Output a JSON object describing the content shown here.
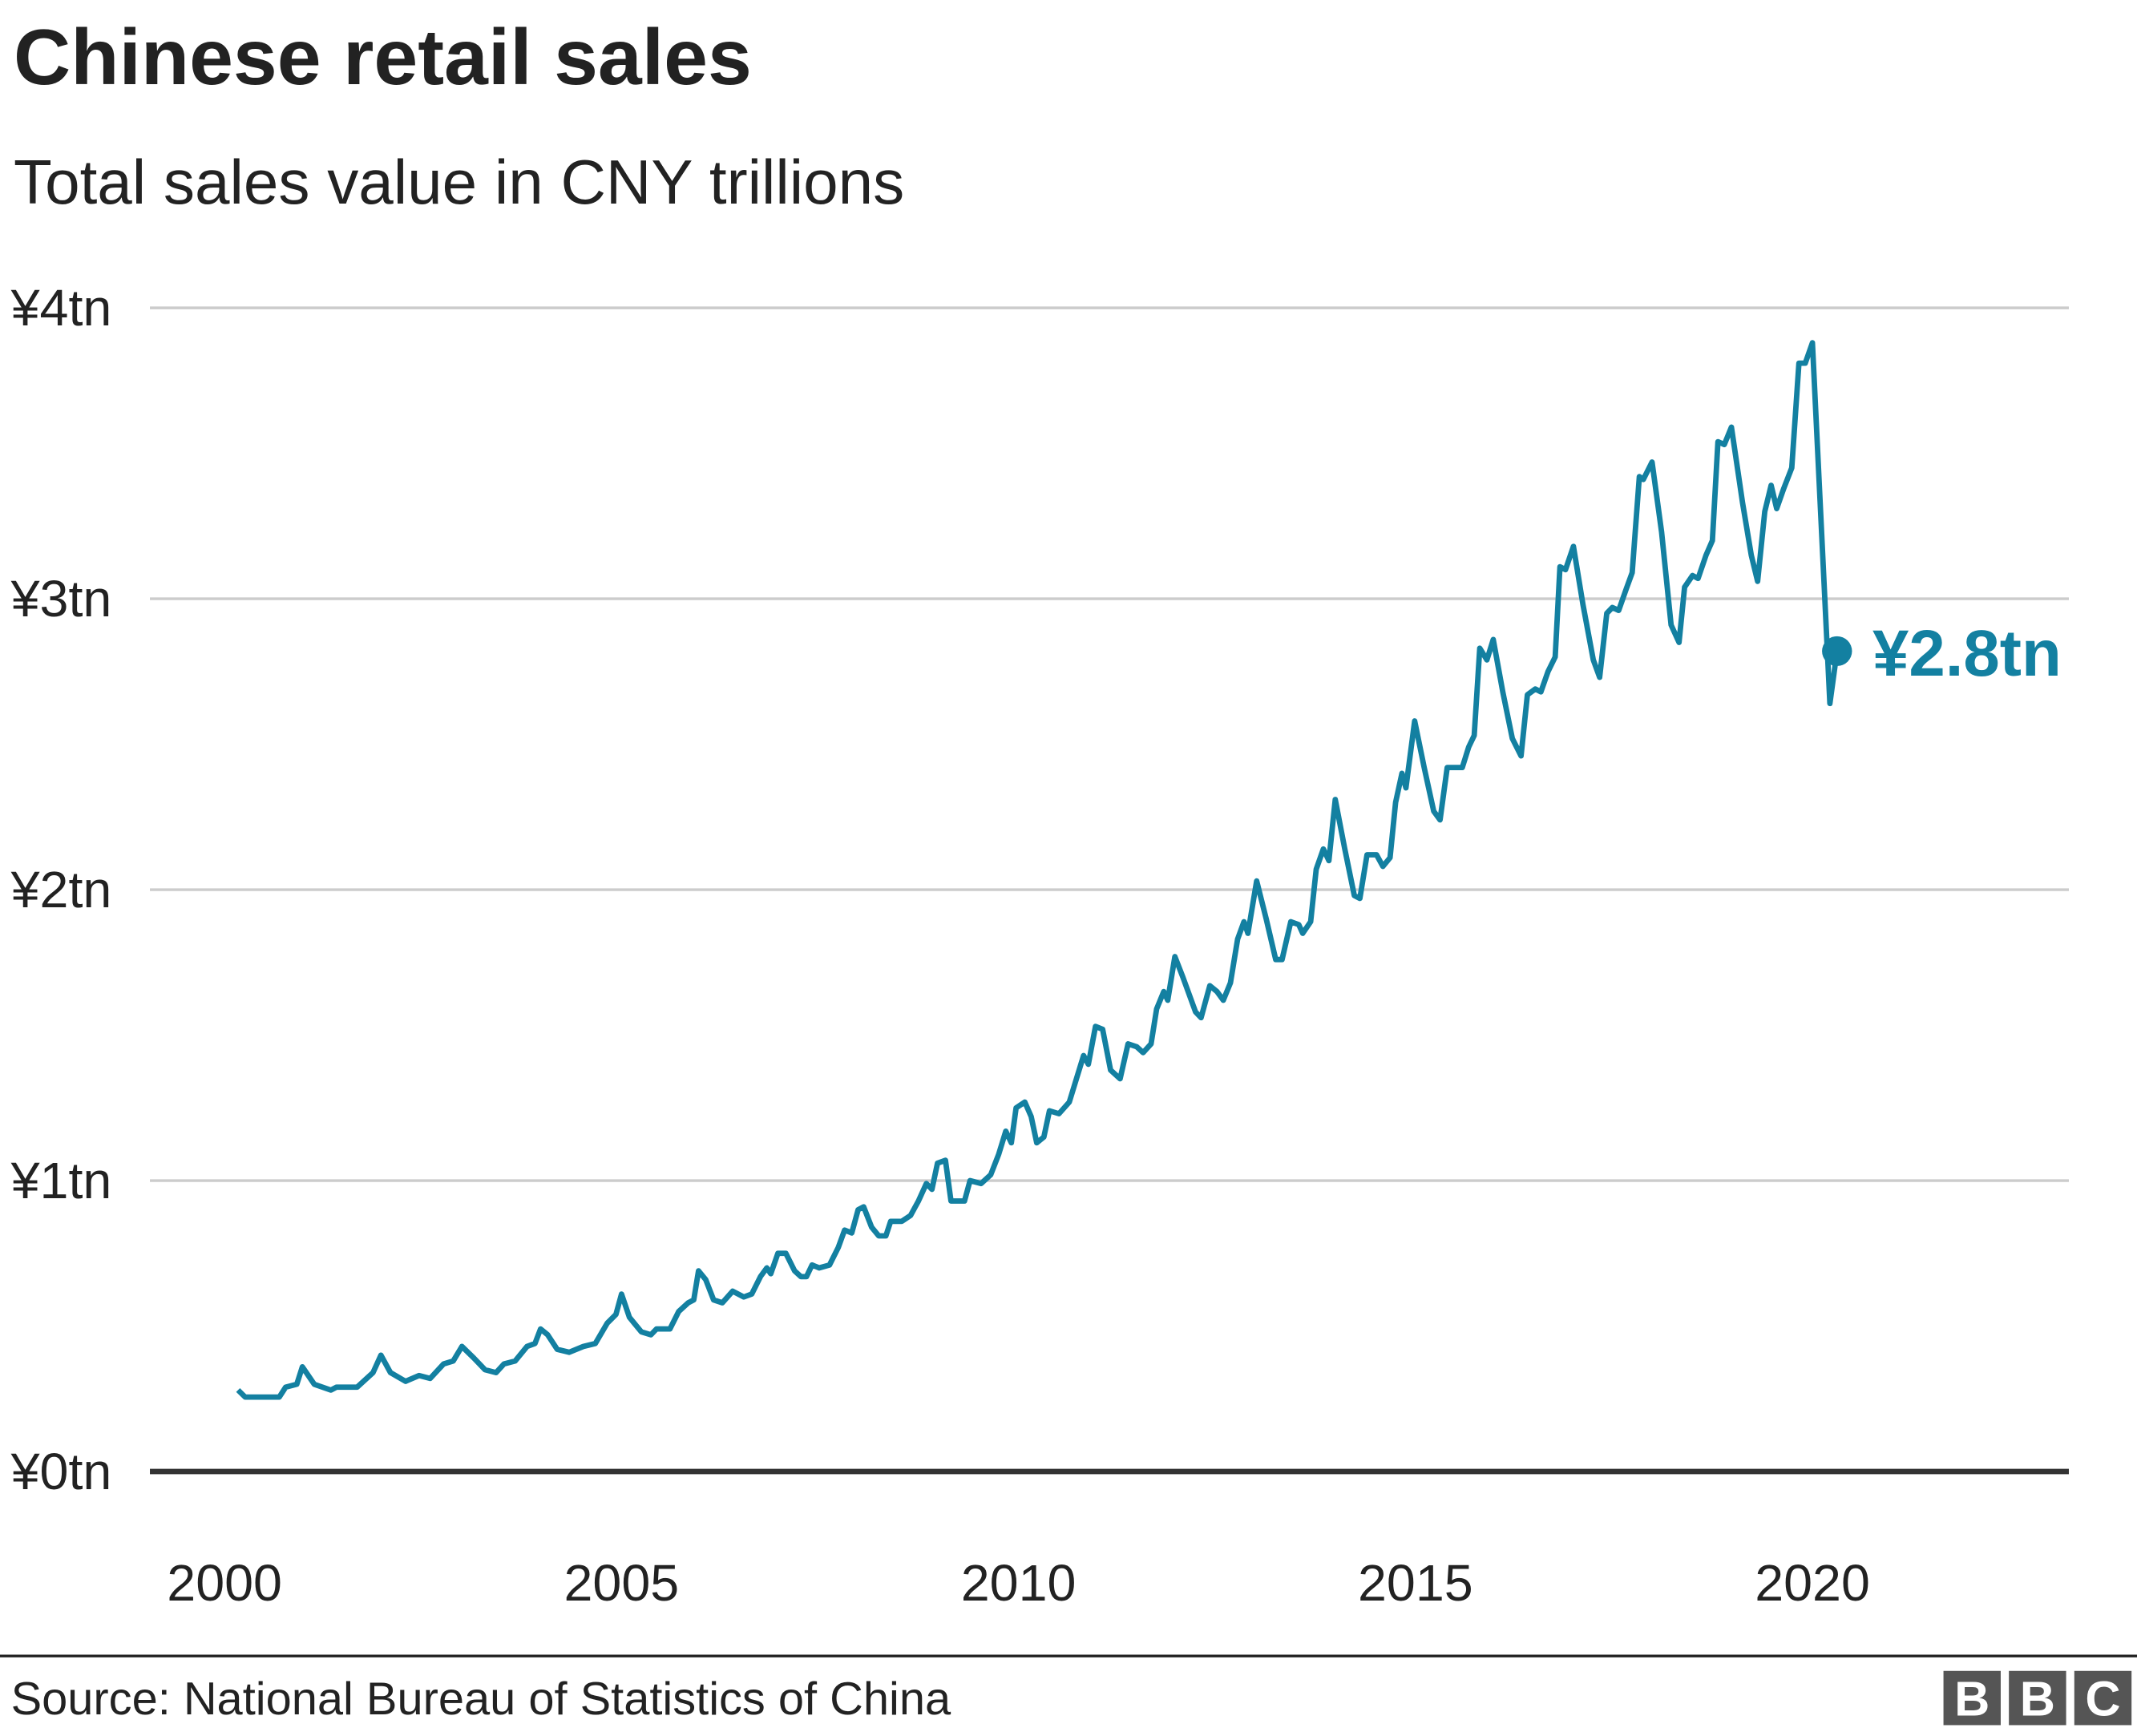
{
  "chart_data": {
    "type": "line",
    "title": "Chinese retail sales",
    "subtitle": "Total sales value in CNY trillions",
    "source": "Source: National Bureau of Statistics of China",
    "logo": [
      "B",
      "B",
      "C"
    ],
    "color": "#1380a1",
    "grid": true,
    "xlim": [
      1999.06,
      2023.23
    ],
    "ylim": [
      0,
      4
    ],
    "xticks": [
      2000,
      2005,
      2010,
      2015,
      2020
    ],
    "yticks": [
      {
        "value": 0,
        "label": "¥0tn"
      },
      {
        "value": 1,
        "label": "¥1tn"
      },
      {
        "value": 2,
        "label": "¥2tn"
      },
      {
        "value": 3,
        "label": "¥3tn"
      },
      {
        "value": 4,
        "label": "¥4tn"
      }
    ],
    "x": [
      2000.17,
      2000.26,
      2000.69,
      2000.77,
      2000.91,
      2000.98,
      2001.13,
      2001.34,
      2001.41,
      2001.67,
      2001.87,
      2001.97,
      2002.09,
      2002.28,
      2002.45,
      2002.59,
      2002.76,
      2002.88,
      2002.99,
      2003.14,
      2003.28,
      2003.42,
      2003.52,
      2003.66,
      2003.81,
      2003.91,
      2003.98,
      2004.07,
      2004.19,
      2004.34,
      2004.52,
      2004.67,
      2004.82,
      2004.93,
      2005.0,
      2005.1,
      2005.25,
      2005.37,
      2005.44,
      2005.61,
      2005.72,
      2005.84,
      2005.91,
      2005.97,
      2006.06,
      2006.16,
      2006.27,
      2006.4,
      2006.54,
      2006.64,
      2006.75,
      2006.83,
      2006.88,
      2006.97,
      2007.07,
      2007.18,
      2007.26,
      2007.33,
      2007.4,
      2007.49,
      2007.62,
      2007.73,
      2007.81,
      2007.9,
      2007.98,
      2008.05,
      2008.15,
      2008.24,
      2008.33,
      2008.39,
      2008.53,
      2008.64,
      2008.74,
      2008.84,
      2008.91,
      2008.98,
      2009.08,
      2009.15,
      2009.32,
      2009.39,
      2009.53,
      2009.65,
      2009.75,
      2009.84,
      2009.91,
      2009.97,
      2010.08,
      2010.16,
      2010.23,
      2010.32,
      2010.39,
      2010.51,
      2010.64,
      2010.73,
      2010.82,
      2010.88,
      2010.97,
      2011.06,
      2011.16,
      2011.28,
      2011.38,
      2011.49,
      2011.57,
      2011.67,
      2011.74,
      2011.83,
      2011.88,
      2011.97,
      2012.07,
      2012.23,
      2012.3,
      2012.41,
      2012.5,
      2012.58,
      2012.67,
      2012.76,
      2012.84,
      2012.89,
      2013.0,
      2013.12,
      2013.24,
      2013.32,
      2013.43,
      2013.53,
      2013.58,
      2013.68,
      2013.75,
      2013.84,
      2013.91,
      2013.99,
      2014.11,
      2014.23,
      2014.3,
      2014.39,
      2014.51,
      2014.59,
      2014.68,
      2014.75,
      2014.83,
      2014.88,
      2014.99,
      2015.11,
      2015.23,
      2015.31,
      2015.4,
      2015.5,
      2015.59,
      2015.67,
      2015.74,
      2015.81,
      2015.9,
      2015.98,
      2016.1,
      2016.22,
      2016.33,
      2016.41,
      2016.51,
      2016.58,
      2016.67,
      2016.76,
      2016.82,
      2016.89,
      2016.99,
      2017.11,
      2017.24,
      2017.32,
      2017.41,
      2017.48,
      2017.56,
      2017.65,
      2017.73,
      2017.82,
      2017.87,
      2017.98,
      2018.1,
      2018.22,
      2018.32,
      2018.39,
      2018.49,
      2018.56,
      2018.66,
      2018.74,
      2018.81,
      2018.89,
      2018.98,
      2019.12,
      2019.23,
      2019.31,
      2019.4,
      2019.48,
      2019.55,
      2019.64,
      2019.74,
      2019.83,
      2019.91,
      2020.0,
      2020.22,
      2020.31
    ],
    "values": [
      0.28,
      0.256,
      0.256,
      0.29,
      0.3,
      0.36,
      0.3,
      0.28,
      0.29,
      0.29,
      0.34,
      0.4,
      0.34,
      0.31,
      0.33,
      0.32,
      0.37,
      0.38,
      0.43,
      0.39,
      0.35,
      0.34,
      0.37,
      0.38,
      0.43,
      0.44,
      0.49,
      0.47,
      0.42,
      0.41,
      0.43,
      0.44,
      0.51,
      0.54,
      0.61,
      0.53,
      0.48,
      0.47,
      0.49,
      0.49,
      0.55,
      0.58,
      0.59,
      0.69,
      0.66,
      0.59,
      0.58,
      0.62,
      0.6,
      0.61,
      0.67,
      0.7,
      0.68,
      0.75,
      0.75,
      0.69,
      0.67,
      0.67,
      0.71,
      0.7,
      0.71,
      0.77,
      0.83,
      0.82,
      0.9,
      0.91,
      0.84,
      0.81,
      0.81,
      0.86,
      0.86,
      0.88,
      0.93,
      0.99,
      0.97,
      1.06,
      1.07,
      0.93,
      0.93,
      1.0,
      0.99,
      1.02,
      1.09,
      1.17,
      1.13,
      1.25,
      1.27,
      1.22,
      1.13,
      1.15,
      1.24,
      1.23,
      1.27,
      1.35,
      1.43,
      1.4,
      1.53,
      1.52,
      1.38,
      1.35,
      1.47,
      1.46,
      1.44,
      1.47,
      1.59,
      1.65,
      1.62,
      1.77,
      1.7,
      1.58,
      1.56,
      1.67,
      1.65,
      1.62,
      1.68,
      1.83,
      1.89,
      1.85,
      2.03,
      1.9,
      1.76,
      1.76,
      1.89,
      1.88,
      1.85,
      1.89,
      2.07,
      2.14,
      2.1,
      2.31,
      2.14,
      1.98,
      1.97,
      2.12,
      2.12,
      2.08,
      2.11,
      2.3,
      2.4,
      2.35,
      2.58,
      2.42,
      2.27,
      2.24,
      2.42,
      2.42,
      2.42,
      2.49,
      2.53,
      2.83,
      2.79,
      2.86,
      2.68,
      2.52,
      2.46,
      2.67,
      2.69,
      2.68,
      2.75,
      2.8,
      3.11,
      3.1,
      3.18,
      2.98,
      2.79,
      2.73,
      2.95,
      2.97,
      2.96,
      3.03,
      3.09,
      3.42,
      3.41,
      3.47,
      3.23,
      2.91,
      2.85,
      3.04,
      3.08,
      3.07,
      3.15,
      3.2,
      3.54,
      3.53,
      3.59,
      3.33,
      3.15,
      3.06,
      3.3,
      3.39,
      3.31,
      3.38,
      3.45,
      3.81,
      3.81,
      3.88,
      2.64,
      2.82
    ],
    "annotation": "¥2.8tn"
  }
}
